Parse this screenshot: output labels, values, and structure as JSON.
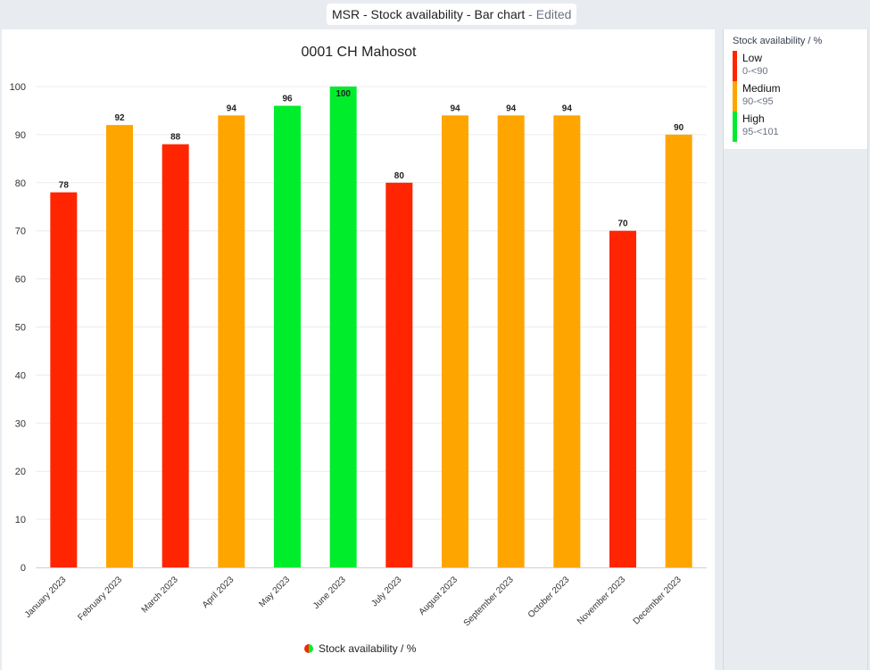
{
  "header": {
    "title": "MSR - Stock availability - Bar chart",
    "edited": " - Edited"
  },
  "chart_data": {
    "type": "bar",
    "title": "0001 CH Mahosot",
    "xlabel": "",
    "ylabel": "",
    "ylim": [
      0,
      100
    ],
    "yticks": [
      0,
      10,
      20,
      30,
      40,
      50,
      60,
      70,
      80,
      90,
      100
    ],
    "categories": [
      "January 2023",
      "February 2023",
      "March 2023",
      "April 2023",
      "May 2023",
      "June 2023",
      "July 2023",
      "August 2023",
      "September 2023",
      "October 2023",
      "November 2023",
      "December 2023"
    ],
    "series": [
      {
        "name": "Stock availability / %",
        "values": [
          78,
          92,
          88,
          94,
          96,
          100,
          80,
          94,
          94,
          94,
          70,
          90
        ]
      }
    ],
    "grid": true,
    "legend_position": "bottom",
    "legend_icon_colors": [
      "#ff2500",
      "#00ed2c"
    ]
  },
  "legend": {
    "title": "Stock availability / %",
    "items": [
      {
        "label": "Low",
        "range": "0-<90",
        "color": "#ff2500",
        "min": 0,
        "max": 90
      },
      {
        "label": "Medium",
        "range": "90-<95",
        "color": "#ffa500",
        "min": 90,
        "max": 95
      },
      {
        "label": "High",
        "range": "95-<101",
        "color": "#00ed2c",
        "min": 95,
        "max": 101
      }
    ]
  }
}
